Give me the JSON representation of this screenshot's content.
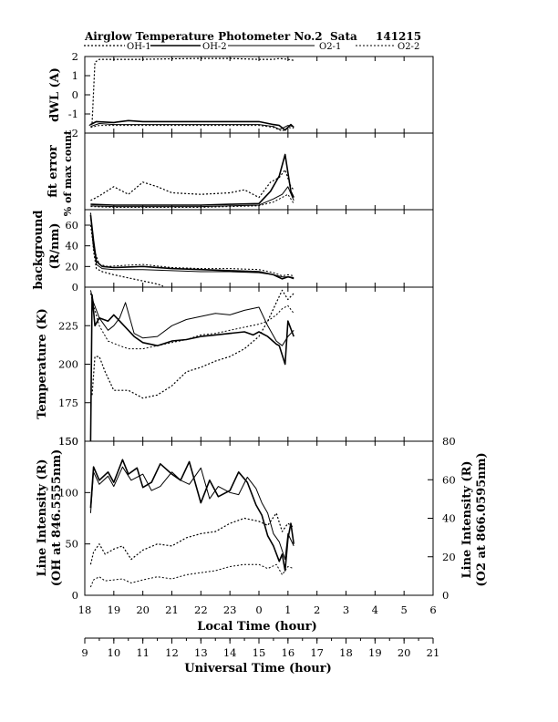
{
  "figure": {
    "title": "Airglow Temperature Photometer No.2",
    "site": "Sata",
    "date": "141215"
  },
  "legend": [
    {
      "name": "OH-1",
      "dash": "2,2",
      "width": 1.2
    },
    {
      "name": "OH-2",
      "dash": "",
      "width": 1.6
    },
    {
      "name": "O2-1",
      "dash": "",
      "width": 1.0
    },
    {
      "name": "O2-2",
      "dash": "2,2",
      "width": 1.0
    }
  ],
  "x_axes": {
    "local": {
      "label": "Local Time (hour)",
      "ticks": [
        "18",
        "19",
        "20",
        "21",
        "22",
        "23",
        "0",
        "1",
        "2",
        "3",
        "4",
        "5",
        "6"
      ]
    },
    "universal": {
      "label": "Universal Time (hour)",
      "ticks": [
        "9",
        "10",
        "11",
        "12",
        "13",
        "14",
        "15",
        "16",
        "17",
        "18",
        "19",
        "20",
        "21"
      ]
    }
  },
  "chart_data": [
    {
      "type": "line",
      "panel": "dwl",
      "ylabel": "dWL (A)",
      "ylim": [
        -2,
        2
      ],
      "yticks": [
        "-2",
        "-1",
        "0",
        "1",
        "2"
      ],
      "x_unit": "universal time hours",
      "series": [
        {
          "name": "OH-1",
          "x": [
            9.15,
            9.25,
            9.35,
            9.5,
            10,
            11,
            12,
            13,
            14,
            15,
            15.5,
            15.7,
            16.0,
            16.2
          ],
          "values": [
            -1.6,
            -1.5,
            1.7,
            1.85,
            1.85,
            1.85,
            1.88,
            1.9,
            1.9,
            1.85,
            1.85,
            1.9,
            1.85,
            1.8
          ]
        },
        {
          "name": "OH-2",
          "x": [
            9.2,
            9.4,
            10,
            10.5,
            11,
            12,
            13,
            14,
            15,
            15.5,
            15.7,
            15.9,
            16.1,
            16.2
          ],
          "values": [
            -1.55,
            -1.4,
            -1.45,
            -1.35,
            -1.4,
            -1.4,
            -1.4,
            -1.4,
            -1.4,
            -1.55,
            -1.6,
            -1.85,
            -1.55,
            -1.7
          ]
        },
        {
          "name": "O2-1",
          "x": [
            9.2,
            9.5,
            10,
            11,
            12,
            13,
            14,
            15,
            15.5,
            15.7,
            15.8,
            16.0,
            16.2
          ],
          "values": [
            -1.65,
            -1.5,
            -1.55,
            -1.55,
            -1.55,
            -1.55,
            -1.55,
            -1.55,
            -1.65,
            -1.8,
            -1.75,
            -1.6,
            -1.65
          ]
        },
        {
          "name": "O2-2",
          "x": [
            9.2,
            9.5,
            10,
            11,
            12,
            13,
            14,
            15,
            15.5,
            15.8,
            16.0,
            16.2
          ],
          "values": [
            -1.7,
            -1.6,
            -1.6,
            -1.6,
            -1.6,
            -1.6,
            -1.6,
            -1.6,
            -1.7,
            -1.9,
            -1.7,
            -1.75
          ]
        }
      ]
    },
    {
      "type": "line",
      "panel": "fit_error",
      "ylabel": "fit error",
      "ylabel2": "% of max count",
      "ylim": [
        0,
        5
      ],
      "x_unit": "universal time hours",
      "series": [
        {
          "name": "OH-1",
          "x": [
            9.2,
            9.5,
            10,
            10.5,
            11,
            11.5,
            12,
            13,
            14,
            14.5,
            15,
            15.4,
            15.7,
            15.9,
            16.1,
            16.2
          ],
          "values": [
            0.6,
            0.9,
            1.5,
            1.0,
            1.8,
            1.5,
            1.1,
            1.0,
            1.1,
            1.3,
            0.8,
            1.8,
            2.1,
            2.6,
            1.5,
            1.3
          ]
        },
        {
          "name": "OH-2",
          "x": [
            9.2,
            10,
            11,
            12,
            13,
            14,
            15,
            15.4,
            15.7,
            15.9,
            16.1,
            16.2
          ],
          "values": [
            0.35,
            0.3,
            0.3,
            0.3,
            0.3,
            0.35,
            0.4,
            1.2,
            2.2,
            3.6,
            1.2,
            0.8
          ]
        },
        {
          "name": "O2-1",
          "x": [
            9.2,
            10,
            11,
            12,
            13,
            14,
            15,
            15.5,
            15.8,
            16.0,
            16.2
          ],
          "values": [
            0.25,
            0.2,
            0.2,
            0.2,
            0.2,
            0.25,
            0.3,
            0.7,
            1.0,
            1.5,
            0.6
          ]
        },
        {
          "name": "O2-2",
          "x": [
            9.2,
            10,
            11,
            12,
            13,
            14,
            15,
            15.5,
            15.8,
            16.0,
            16.2
          ],
          "values": [
            0.2,
            0.15,
            0.15,
            0.15,
            0.15,
            0.2,
            0.25,
            0.5,
            0.8,
            1.0,
            0.4
          ]
        }
      ]
    },
    {
      "type": "line",
      "panel": "background",
      "ylabel": "background",
      "ylabel2": "(R/nm)",
      "ylim": [
        0,
        75
      ],
      "yticks": [
        "0",
        "20",
        "40",
        "60"
      ],
      "x_unit": "universal time hours",
      "series": [
        {
          "name": "OH-1",
          "x": [
            9.2,
            9.3,
            9.4,
            9.6,
            10,
            10.5,
            11,
            11.5,
            11.7
          ],
          "values": [
            72,
            35,
            18,
            15,
            12,
            9,
            6,
            3,
            1
          ]
        },
        {
          "name": "OH-2",
          "x": [
            9.2,
            9.3,
            9.4,
            9.6,
            10,
            11,
            12,
            13,
            14,
            15,
            15.5,
            15.8,
            16.0,
            16.2
          ],
          "values": [
            70,
            45,
            25,
            20,
            19,
            20,
            18,
            17,
            16,
            15,
            12,
            8,
            10,
            9
          ]
        },
        {
          "name": "O2-1",
          "x": [
            9.2,
            9.3,
            9.4,
            9.6,
            10,
            11,
            12,
            13,
            14,
            15,
            15.5,
            15.8,
            16.0,
            16.2
          ],
          "values": [
            68,
            40,
            22,
            18,
            17,
            17,
            16,
            15,
            15,
            14,
            12,
            10,
            10,
            8
          ]
        },
        {
          "name": "O2-2",
          "x": [
            9.2,
            9.3,
            9.5,
            9.8,
            10.3,
            11,
            12,
            13,
            14,
            15,
            15.5,
            15.8,
            16.0,
            16.2
          ],
          "values": [
            60,
            38,
            22,
            20,
            21,
            22,
            19,
            18,
            18,
            17,
            14,
            11,
            12,
            11
          ]
        }
      ]
    },
    {
      "type": "line",
      "panel": "temperature",
      "ylabel": "Temperature (K)",
      "ylim": [
        150,
        250
      ],
      "yticks": [
        "150",
        "175",
        "200",
        "225"
      ],
      "x_unit": "universal time hours",
      "series": [
        {
          "name": "OH-1",
          "x": [
            9.25,
            9.35,
            9.5,
            9.7,
            10,
            10.5,
            11,
            11.5,
            12,
            12.5,
            13,
            13.5,
            14,
            14.5,
            15,
            15.3,
            15.6,
            15.8,
            16.0,
            16.2
          ],
          "values": [
            180,
            205,
            205,
            195,
            183,
            183,
            178,
            180,
            186,
            195,
            198,
            202,
            205,
            210,
            218,
            228,
            240,
            248,
            242,
            246
          ]
        },
        {
          "name": "OH-2",
          "x": [
            9.2,
            9.25,
            9.35,
            9.5,
            9.8,
            10,
            10.4,
            10.7,
            11,
            11.5,
            12,
            12.5,
            13,
            13.5,
            14,
            14.5,
            14.8,
            15,
            15.3,
            15.6,
            15.7,
            15.9,
            16.0,
            16.2
          ],
          "values": [
            150,
            245,
            225,
            230,
            228,
            232,
            224,
            218,
            214,
            212,
            215,
            216,
            218,
            219,
            220,
            221,
            219,
            221,
            218,
            213,
            212,
            200,
            228,
            218
          ]
        },
        {
          "name": "O2-1",
          "x": [
            9.2,
            9.3,
            9.5,
            9.8,
            10,
            10.2,
            10.4,
            10.7,
            11,
            11.5,
            12,
            12.5,
            13,
            13.5,
            14,
            14.5,
            15,
            15.3,
            15.6,
            15.8,
            16.0,
            16.2
          ],
          "values": [
            248,
            240,
            230,
            222,
            225,
            230,
            240,
            220,
            217,
            218,
            225,
            229,
            231,
            233,
            232,
            235,
            237,
            225,
            215,
            212,
            218,
            222
          ]
        },
        {
          "name": "O2-2",
          "x": [
            9.2,
            9.3,
            9.5,
            9.8,
            10.2,
            10.5,
            11,
            11.5,
            12,
            12.5,
            13,
            13.5,
            14,
            14.5,
            15,
            15.3,
            15.6,
            15.8,
            16.0,
            16.2
          ],
          "values": [
            246,
            238,
            225,
            215,
            212,
            210,
            210,
            212,
            214,
            216,
            219,
            220,
            222,
            224,
            226,
            228,
            232,
            236,
            238,
            233
          ]
        }
      ]
    },
    {
      "type": "line",
      "panel": "intensity",
      "ylabel": "Line Intensity (R)",
      "ylabel2": "(OH at 846.5555nm)",
      "y2label": "Line Intensity (R)",
      "y2label2": "(O2 at 866.0595nm)",
      "ylim": [
        0,
        150
      ],
      "yticks": [
        "0",
        "50",
        "100",
        "150"
      ],
      "y2lim": [
        0,
        80
      ],
      "y2ticks": [
        "0",
        "20",
        "40",
        "60",
        "80"
      ],
      "x_unit": "universal time hours",
      "series": [
        {
          "name": "OH-1",
          "axis": "left",
          "x": [
            9.2,
            9.3,
            9.5,
            9.7,
            10,
            10.3,
            10.6,
            11,
            11.5,
            12,
            12.5,
            13,
            13.5,
            14,
            14.5,
            15,
            15.3,
            15.6,
            15.8,
            16.0,
            16.2
          ],
          "values": [
            30,
            42,
            50,
            40,
            45,
            48,
            35,
            44,
            50,
            48,
            56,
            60,
            62,
            70,
            75,
            72,
            68,
            80,
            62,
            70,
            66
          ]
        },
        {
          "name": "OH-2",
          "axis": "left",
          "x": [
            9.2,
            9.3,
            9.5,
            9.8,
            10,
            10.3,
            10.5,
            10.8,
            11,
            11.3,
            11.6,
            12,
            12.3,
            12.6,
            13,
            13.3,
            13.6,
            14,
            14.3,
            14.6,
            14.9,
            15.1,
            15.3,
            15.5,
            15.7,
            15.8,
            15.9,
            16.0,
            16.1,
            16.2
          ],
          "values": [
            85,
            125,
            112,
            120,
            110,
            132,
            118,
            124,
            105,
            110,
            128,
            118,
            112,
            130,
            90,
            112,
            96,
            102,
            120,
            110,
            88,
            78,
            58,
            48,
            33,
            40,
            24,
            55,
            70,
            50
          ]
        },
        {
          "name": "O2-1",
          "axis": "left",
          "x": [
            9.2,
            9.3,
            9.5,
            9.8,
            10,
            10.3,
            10.6,
            11,
            11.3,
            11.6,
            12,
            12.3,
            12.6,
            13,
            13.3,
            13.6,
            14,
            14.3,
            14.6,
            14.9,
            15.1,
            15.3,
            15.5,
            15.7,
            15.9,
            16.0,
            16.2
          ],
          "values": [
            80,
            120,
            108,
            116,
            106,
            125,
            112,
            118,
            102,
            106,
            120,
            112,
            108,
            124,
            94,
            106,
            100,
            98,
            115,
            104,
            90,
            80,
            60,
            52,
            35,
            60,
            48
          ]
        },
        {
          "name": "O2-2",
          "axis": "left",
          "x": [
            9.2,
            9.3,
            9.5,
            9.7,
            10,
            10.3,
            10.6,
            11,
            11.5,
            12,
            12.5,
            13,
            13.5,
            14,
            14.5,
            15,
            15.3,
            15.6,
            15.8,
            16.0,
            16.2
          ],
          "values": [
            8,
            15,
            18,
            14,
            15,
            16,
            12,
            15,
            18,
            16,
            20,
            22,
            24,
            28,
            30,
            30,
            26,
            30,
            20,
            28,
            26
          ]
        }
      ]
    }
  ]
}
